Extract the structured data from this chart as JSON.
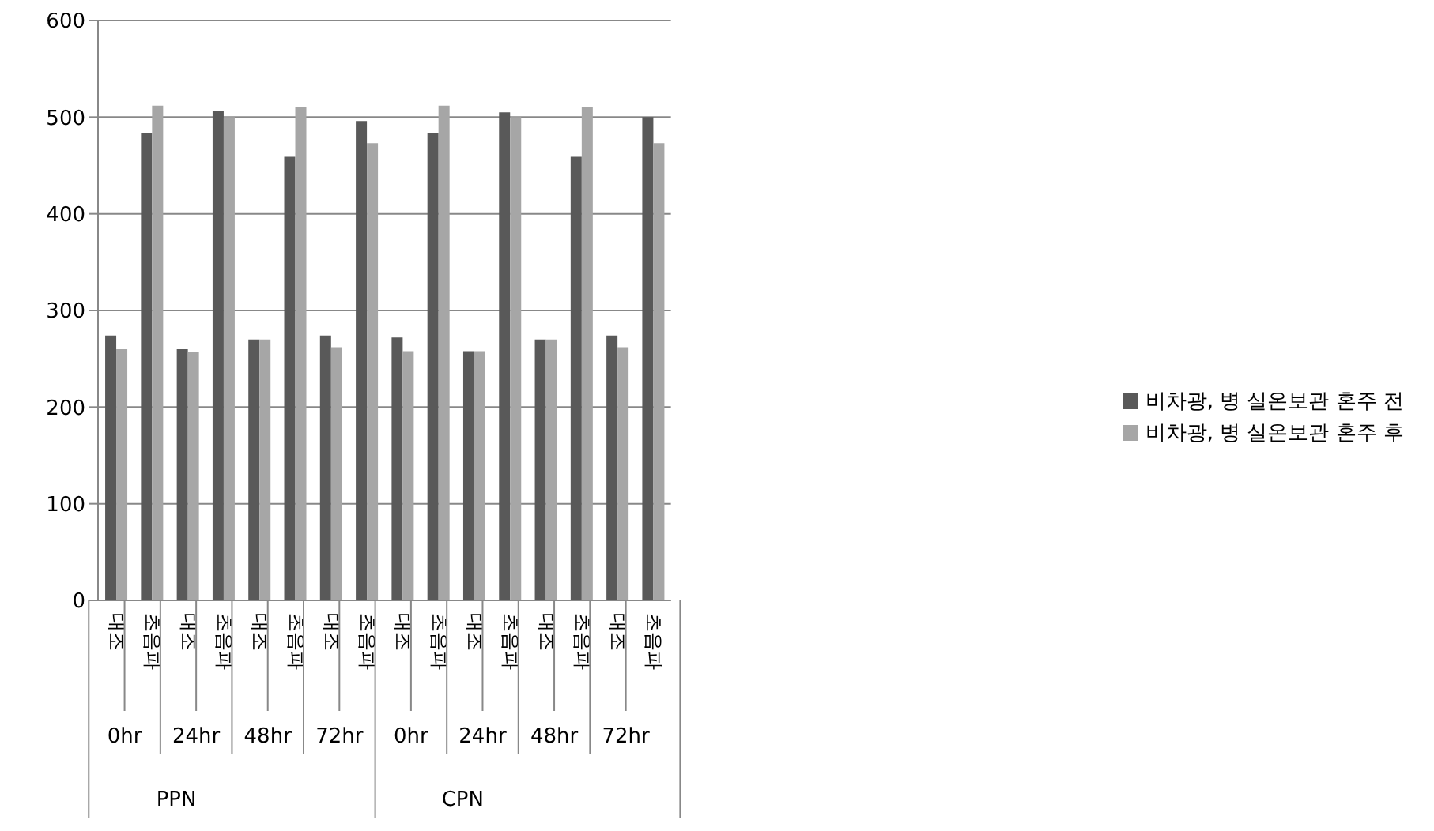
{
  "chart_data": {
    "type": "bar",
    "categories": [
      "대조",
      "초음파",
      "대조",
      "초음파",
      "대조",
      "초음파",
      "대조",
      "초음파",
      "대조",
      "초음파",
      "대조",
      "초음파",
      "대조",
      "초음파",
      "대조",
      "초음파"
    ],
    "series": [
      {
        "name": "비차광, 병 실온보관 혼주 전",
        "color": "#595959",
        "values": [
          274,
          484,
          260,
          506,
          270,
          459,
          274,
          496,
          272,
          484,
          258,
          505,
          270,
          459,
          274,
          500
        ]
      },
      {
        "name": "비차광, 병 실온보관 혼주 후",
        "color": "#a6a6a6",
        "values": [
          260,
          512,
          257,
          500,
          270,
          510,
          262,
          473,
          258,
          512,
          258,
          500,
          270,
          510,
          262,
          473
        ]
      }
    ],
    "annotations": [
      "0hr",
      "24hr",
      "48hr",
      "72hr",
      "0hr",
      "24hr",
      "48hr",
      "72hr",
      "PPN",
      "CPN"
    ],
    "ylim": [
      0,
      600
    ],
    "yticks": [
      0,
      100,
      200,
      300,
      400,
      500,
      600
    ],
    "grid": "y",
    "legend": "right"
  }
}
